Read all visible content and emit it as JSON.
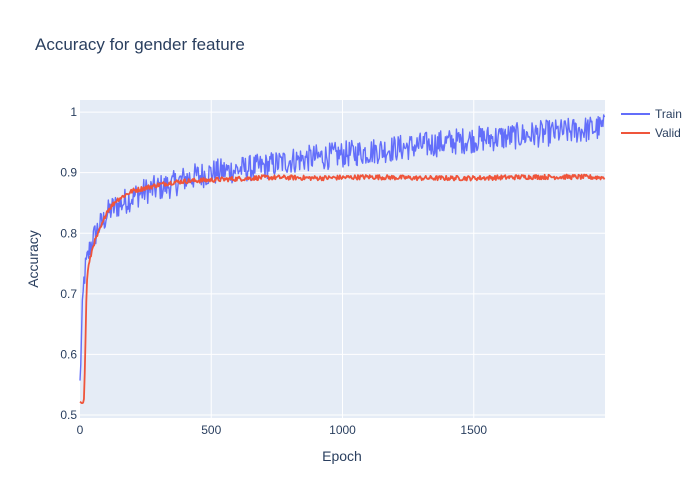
{
  "chart_data": {
    "type": "line",
    "title": "Accuracy for gender feature",
    "xlabel": "Epoch",
    "ylabel": "Accuracy",
    "xlim": [
      0,
      2000
    ],
    "ylim": [
      0.495,
      1.02
    ],
    "xticks": [
      0,
      500,
      1000,
      1500
    ],
    "xtick_labels": [
      "0",
      "500",
      "1000",
      "1500"
    ],
    "yticks": [
      0.5,
      0.6,
      0.7,
      0.8,
      0.9,
      1.0
    ],
    "ytick_labels": [
      "0.5",
      "0.6",
      "0.7",
      "0.8",
      "0.9",
      "1"
    ],
    "grid": true,
    "legend_position": "top-right",
    "series": [
      {
        "name": "Train",
        "color": "#636efa",
        "x": [
          0,
          5,
          10,
          15,
          20,
          25,
          30,
          40,
          50,
          60,
          70,
          80,
          90,
          100,
          120,
          140,
          160,
          180,
          200,
          250,
          300,
          350,
          400,
          450,
          500,
          600,
          700,
          800,
          900,
          1000,
          1100,
          1200,
          1300,
          1400,
          1500,
          1600,
          1700,
          1800,
          1900,
          2000
        ],
        "y": [
          0.55,
          0.62,
          0.68,
          0.72,
          0.74,
          0.75,
          0.76,
          0.78,
          0.79,
          0.8,
          0.81,
          0.815,
          0.82,
          0.83,
          0.84,
          0.845,
          0.85,
          0.855,
          0.86,
          0.87,
          0.875,
          0.88,
          0.89,
          0.895,
          0.9,
          0.905,
          0.91,
          0.92,
          0.925,
          0.93,
          0.935,
          0.94,
          0.945,
          0.95,
          0.955,
          0.958,
          0.962,
          0.966,
          0.97,
          0.975
        ],
        "noise": 0.022
      },
      {
        "name": "Valid",
        "color": "#ef553b",
        "x": [
          0,
          10,
          15,
          20,
          25,
          30,
          35,
          40,
          45,
          50,
          55,
          60,
          70,
          80,
          90,
          100,
          120,
          140,
          160,
          180,
          200,
          250,
          300,
          350,
          400,
          500,
          600,
          700,
          800,
          900,
          1000,
          1100,
          1200,
          1300,
          1400,
          1500,
          1600,
          1700,
          1800,
          1900,
          2000
        ],
        "y": [
          0.523,
          0.523,
          0.524,
          0.6,
          0.71,
          0.74,
          0.75,
          0.76,
          0.77,
          0.78,
          0.785,
          0.79,
          0.8,
          0.81,
          0.82,
          0.835,
          0.845,
          0.855,
          0.86,
          0.865,
          0.87,
          0.875,
          0.88,
          0.884,
          0.886,
          0.888,
          0.89,
          0.892,
          0.892,
          0.891,
          0.892,
          0.893,
          0.892,
          0.891,
          0.891,
          0.891,
          0.892,
          0.893,
          0.893,
          0.893,
          0.892
        ],
        "noise": 0.004
      }
    ]
  }
}
